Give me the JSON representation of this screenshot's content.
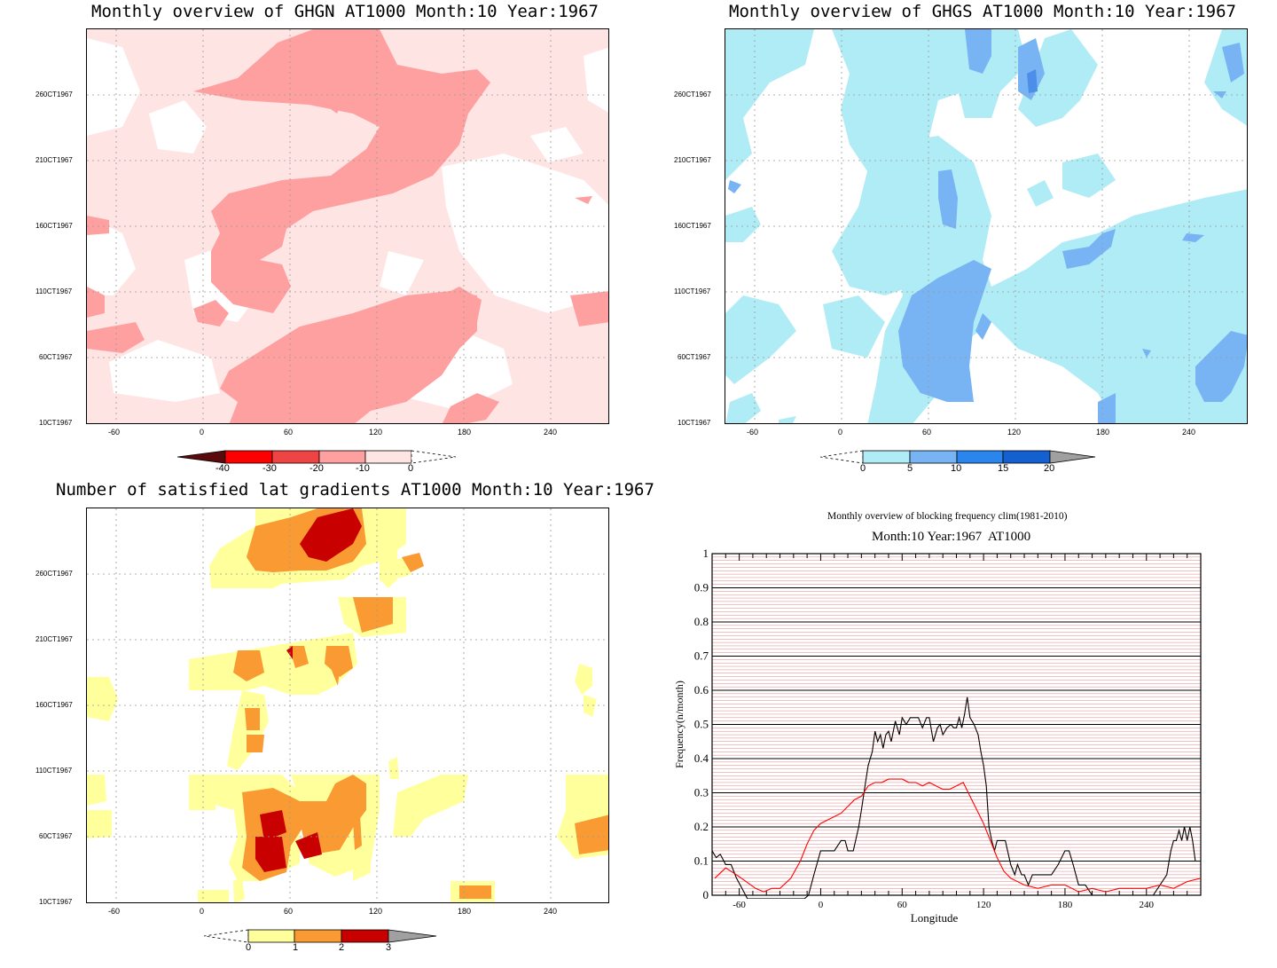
{
  "panels": {
    "ghgn": {
      "title": "Monthly overview of GHGN AT1000 Month:10 Year:1967",
      "colorbar_labels": [
        "-40",
        "-30",
        "-20",
        "-10",
        "0"
      ],
      "colors": [
        "#5a0a0a",
        "#ff0000",
        "#ee4444",
        "#ffa0a0",
        "#ffe4e4"
      ]
    },
    "ghgs": {
      "title": "Monthly overview of GHGS AT1000 Month:10 Year:1967",
      "colorbar_labels": [
        "0",
        "5",
        "10",
        "15",
        "20"
      ],
      "colors": [
        "#b0ecf6",
        "#78b4f4",
        "#2a86ec",
        "#1560d0",
        "#a0a0a0"
      ]
    },
    "lat_gradients": {
      "title": "Number of satisfied lat gradients AT1000 Month:10 Year:1967",
      "colorbar_labels": [
        "0",
        "1",
        "2",
        "3"
      ],
      "colors": [
        "#ffff9c",
        "#fa9a32",
        "#c80000",
        "#a0a0a0"
      ]
    },
    "blocking": {
      "title": "Monthly overview of blocking frequency clim(1981-2010)",
      "subtitle": "Month:10 Year:1967  AT1000"
    }
  },
  "time_axis": [
    "10CT1967",
    "60CT1967",
    "110CT1967",
    "160CT1967",
    "210CT1967",
    "260CT1967"
  ],
  "lon_axis": [
    "-60",
    "0",
    "60",
    "120",
    "180",
    "240"
  ],
  "chart_data": [
    {
      "type": "heatmap",
      "title": "Monthly overview of GHGN AT1000 Month:10 Year:1967",
      "x_ticks": [
        -60,
        0,
        60,
        120,
        180,
        240
      ],
      "xlim": [
        -80,
        280
      ],
      "y_ticks": [
        "10CT1967",
        "60CT1967",
        "110CT1967",
        "160CT1967",
        "210CT1967",
        "260CT1967"
      ],
      "levels": [
        -40,
        -30,
        -20,
        -10,
        0
      ]
    },
    {
      "type": "heatmap",
      "title": "Monthly overview of GHGS AT1000 Month:10 Year:1967",
      "x_ticks": [
        -60,
        0,
        60,
        120,
        180,
        240
      ],
      "xlim": [
        -80,
        280
      ],
      "y_ticks": [
        "10CT1967",
        "60CT1967",
        "110CT1967",
        "160CT1967",
        "210CT1967",
        "260CT1967"
      ],
      "levels": [
        0,
        5,
        10,
        15,
        20
      ]
    },
    {
      "type": "heatmap",
      "title": "Number of satisfied lat gradients AT1000 Month:10 Year:1967",
      "x_ticks": [
        -60,
        0,
        60,
        120,
        180,
        240
      ],
      "xlim": [
        -80,
        280
      ],
      "y_ticks": [
        "10CT1967",
        "60CT1967",
        "110CT1967",
        "160CT1967",
        "210CT1967",
        "260CT1967"
      ],
      "levels": [
        0,
        1,
        2,
        3
      ]
    },
    {
      "type": "line",
      "title": "Monthly overview of blocking frequency clim(1981-2010)",
      "subtitle": "Month:10 Year:1967  AT1000",
      "xlabel": "Longitude",
      "ylabel": "Frequency(n/month)",
      "xlim": [
        -80,
        280
      ],
      "ylim": [
        0,
        1
      ],
      "x_ticks": [
        -60,
        0,
        60,
        120,
        180,
        240
      ],
      "y_ticks": [
        "0",
        "0.1",
        "0.2",
        "0.3",
        "0.4",
        "0.5",
        "0.6",
        "0.7",
        "0.8",
        "0.9",
        "1"
      ],
      "series": [
        {
          "color": "#000000",
          "x": [
            -80,
            -77,
            -74,
            -70,
            -66,
            -62,
            -58,
            -54,
            -50,
            -45,
            -40,
            -30,
            -20,
            -12,
            -9,
            -5,
            0,
            5,
            10,
            15,
            18,
            20,
            24,
            28,
            30,
            33,
            35,
            38,
            40,
            42,
            44,
            46,
            48,
            50,
            52,
            55,
            58,
            60,
            63,
            66,
            68,
            70,
            72,
            75,
            78,
            80,
            83,
            86,
            88,
            90,
            93,
            96,
            98,
            100,
            102,
            104,
            106,
            108,
            110,
            113,
            116,
            118,
            120,
            122,
            124,
            126,
            128,
            130,
            133,
            136,
            140,
            143,
            145,
            148,
            150,
            153,
            156,
            160,
            165,
            170,
            175,
            180,
            183,
            186,
            190,
            195,
            200,
            210,
            220,
            230,
            240,
            245,
            250,
            255,
            258,
            260,
            262,
            264,
            266,
            268,
            270,
            272,
            274,
            276,
            278,
            280
          ],
          "y": [
            0.13,
            0.11,
            0.12,
            0.09,
            0.09,
            0.05,
            0.02,
            -0.01,
            -0.01,
            -0.01,
            -0.01,
            -0.01,
            -0.01,
            -0.01,
            0.0,
            0.06,
            0.13,
            0.13,
            0.13,
            0.16,
            0.16,
            0.13,
            0.13,
            0.2,
            0.25,
            0.33,
            0.38,
            0.42,
            0.48,
            0.45,
            0.47,
            0.43,
            0.47,
            0.48,
            0.45,
            0.51,
            0.47,
            0.52,
            0.5,
            0.52,
            0.52,
            0.52,
            0.52,
            0.49,
            0.52,
            0.52,
            0.45,
            0.49,
            0.5,
            0.47,
            0.49,
            0.5,
            0.49,
            0.49,
            0.52,
            0.49,
            0.53,
            0.58,
            0.52,
            0.5,
            0.47,
            0.42,
            0.38,
            0.32,
            0.2,
            0.16,
            0.13,
            0.16,
            0.16,
            0.16,
            0.09,
            0.06,
            0.09,
            0.06,
            0.06,
            0.03,
            0.06,
            0.06,
            0.06,
            0.06,
            0.09,
            0.13,
            0.13,
            0.09,
            0.03,
            0.03,
            0.0,
            0.0,
            0.0,
            0.0,
            0.0,
            0.0,
            0.03,
            0.06,
            0.13,
            0.16,
            0.16,
            0.19,
            0.16,
            0.2,
            0.16,
            0.2,
            0.16,
            0.1,
            0.1,
            0.1
          ]
        },
        {
          "color": "#ff0000",
          "x": [
            -78,
            -70,
            -62,
            -55,
            -48,
            -42,
            -36,
            -30,
            -22,
            -15,
            -10,
            -5,
            0,
            5,
            10,
            15,
            20,
            25,
            30,
            35,
            40,
            45,
            50,
            55,
            60,
            65,
            70,
            75,
            80,
            85,
            90,
            95,
            100,
            105,
            110,
            115,
            120,
            125,
            130,
            135,
            140,
            150,
            160,
            170,
            180,
            190,
            200,
            210,
            220,
            230,
            240,
            250,
            260,
            270,
            280
          ],
          "y": [
            0.05,
            0.08,
            0.06,
            0.04,
            0.02,
            0.01,
            0.02,
            0.02,
            0.05,
            0.1,
            0.15,
            0.19,
            0.21,
            0.22,
            0.23,
            0.24,
            0.26,
            0.28,
            0.29,
            0.32,
            0.33,
            0.33,
            0.34,
            0.34,
            0.34,
            0.33,
            0.33,
            0.32,
            0.33,
            0.32,
            0.31,
            0.31,
            0.32,
            0.33,
            0.29,
            0.25,
            0.21,
            0.16,
            0.11,
            0.07,
            0.05,
            0.03,
            0.02,
            0.03,
            0.03,
            0.01,
            0.02,
            0.01,
            0.02,
            0.02,
            0.02,
            0.03,
            0.02,
            0.04,
            0.05
          ]
        }
      ]
    }
  ]
}
